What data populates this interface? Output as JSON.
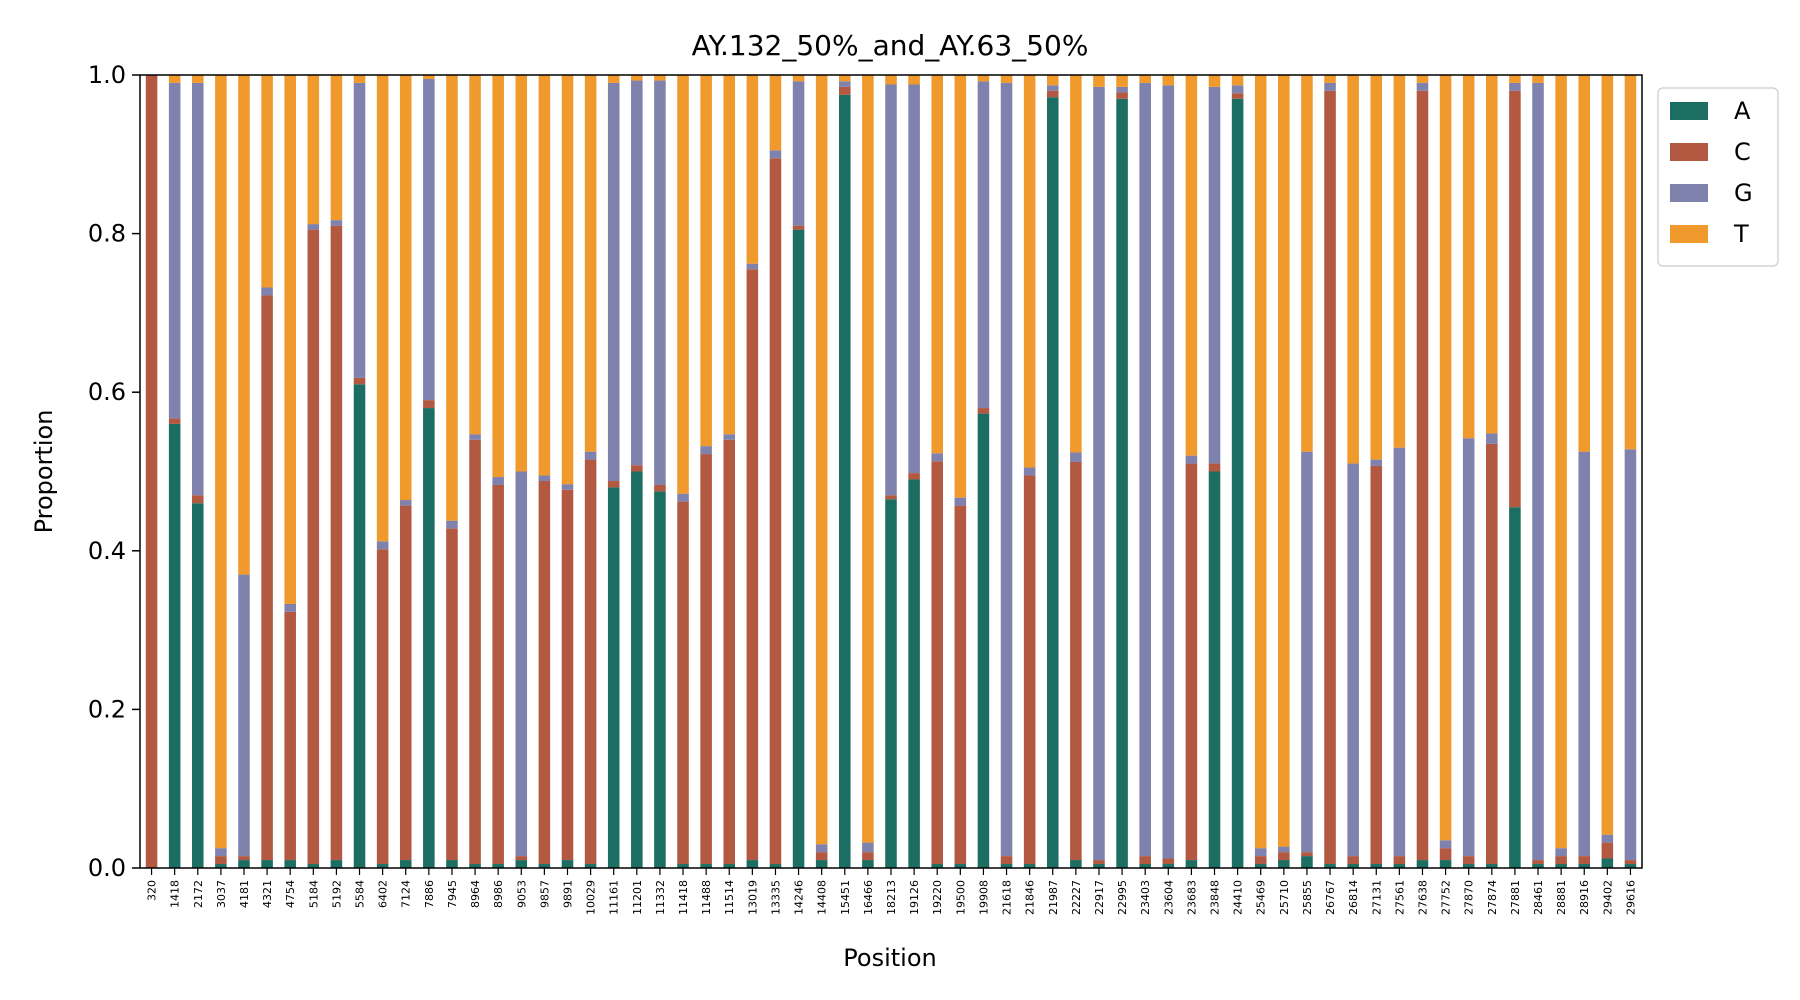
{
  "chart_data": {
    "type": "bar",
    "stacked": true,
    "title": "AY.132_50%_and_AY.63_50%",
    "xlabel": "Position",
    "ylabel": "Proportion",
    "ylim": [
      0,
      1
    ],
    "yticks": [
      "0.0",
      "0.2",
      "0.4",
      "0.6",
      "0.8",
      "1.0"
    ],
    "legend_position": "outside-top-right",
    "categories": [
      "320",
      "1418",
      "2172",
      "3037",
      "4181",
      "4321",
      "4754",
      "5184",
      "5192",
      "5584",
      "6402",
      "7124",
      "7886",
      "7945",
      "8964",
      "8986",
      "9053",
      "9857",
      "9891",
      "10029",
      "11161",
      "11201",
      "11332",
      "11418",
      "11488",
      "11514",
      "13019",
      "13335",
      "14246",
      "14408",
      "15451",
      "16466",
      "18213",
      "19126",
      "19220",
      "19500",
      "19908",
      "21618",
      "21846",
      "21987",
      "22227",
      "22917",
      "22995",
      "23403",
      "23604",
      "23683",
      "23848",
      "24410",
      "25469",
      "25710",
      "25855",
      "26767",
      "26814",
      "27131",
      "27561",
      "27638",
      "27752",
      "27870",
      "27874",
      "27881",
      "28461",
      "28881",
      "28916",
      "29402",
      "29616"
    ],
    "series": [
      {
        "name": "A",
        "color": "#1b6e61",
        "values": [
          0,
          0.56,
          0.46,
          0.005,
          0.01,
          0.01,
          0.01,
          0.005,
          0.01,
          0.61,
          0.005,
          0.01,
          0.58,
          0.01,
          0.005,
          0.005,
          0.01,
          0.005,
          0.01,
          0.005,
          0.48,
          0.5,
          0.475,
          0.005,
          0.005,
          0.005,
          0.01,
          0.005,
          0.805,
          0.01,
          0.975,
          0.01,
          0.465,
          0.49,
          0.005,
          0.005,
          0.573,
          0.005,
          0.005,
          0.972,
          0.01,
          0.005,
          0.97,
          0.005,
          0.005,
          0.01,
          0.5,
          0.97,
          0.005,
          0.01,
          0.015,
          0.005,
          0.005,
          0.005,
          0.005,
          0.01,
          0.01,
          0.005,
          0.005,
          0.455,
          0.005,
          0.005,
          0.005,
          0.012,
          0.005
        ]
      },
      {
        "name": "C",
        "color": "#b35841",
        "values": [
          1.0,
          0.007,
          0.01,
          0.01,
          0.005,
          0.712,
          0.313,
          0.8,
          0.8,
          0.008,
          0.397,
          0.447,
          0.01,
          0.418,
          0.535,
          0.478,
          0.005,
          0.483,
          0.467,
          0.51,
          0.008,
          0.008,
          0.008,
          0.457,
          0.517,
          0.535,
          0.745,
          0.89,
          0.005,
          0.01,
          0.01,
          0.01,
          0.005,
          0.008,
          0.508,
          0.452,
          0.007,
          0.01,
          0.49,
          0.008,
          0.502,
          0.005,
          0.008,
          0.01,
          0.007,
          0.5,
          0.01,
          0.007,
          0.01,
          0.01,
          0.005,
          0.975,
          0.01,
          0.502,
          0.01,
          0.97,
          0.015,
          0.01,
          0.53,
          0.525,
          0.005,
          0.01,
          0.01,
          0.02,
          0.005
        ]
      },
      {
        "name": "G",
        "color": "#7f82ad",
        "values": [
          0,
          0.423,
          0.52,
          0.01,
          0.355,
          0.01,
          0.01,
          0.007,
          0.007,
          0.372,
          0.01,
          0.007,
          0.405,
          0.01,
          0.007,
          0.01,
          0.485,
          0.007,
          0.007,
          0.01,
          0.502,
          0.485,
          0.51,
          0.01,
          0.01,
          0.007,
          0.007,
          0.01,
          0.182,
          0.01,
          0.007,
          0.012,
          0.518,
          0.49,
          0.01,
          0.01,
          0.412,
          0.975,
          0.01,
          0.007,
          0.012,
          0.975,
          0.007,
          0.975,
          0.975,
          0.01,
          0.475,
          0.01,
          0.01,
          0.007,
          0.505,
          0.01,
          0.495,
          0.008,
          0.515,
          0.01,
          0.01,
          0.527,
          0.013,
          0.01,
          0.98,
          0.01,
          0.51,
          0.01,
          0.518
        ]
      },
      {
        "name": "T",
        "color": "#f0992d",
        "values": [
          0,
          0.01,
          0.01,
          0.975,
          0.63,
          0.268,
          0.667,
          0.188,
          0.183,
          0.01,
          0.588,
          0.536,
          0.005,
          0.562,
          0.453,
          0.507,
          0.5,
          0.505,
          0.516,
          0.475,
          0.01,
          0.007,
          0.007,
          0.528,
          0.468,
          0.453,
          0.238,
          0.095,
          0.008,
          0.97,
          0.008,
          0.968,
          0.012,
          0.012,
          0.477,
          0.533,
          0.008,
          0.01,
          0.495,
          0.013,
          0.476,
          0.015,
          0.015,
          0.01,
          0.013,
          0.48,
          0.015,
          0.013,
          0.975,
          0.973,
          0.475,
          0.01,
          0.49,
          0.485,
          0.47,
          0.01,
          0.965,
          0.458,
          0.452,
          0.01,
          0.01,
          0.975,
          0.475,
          0.958,
          0.472
        ]
      }
    ]
  }
}
